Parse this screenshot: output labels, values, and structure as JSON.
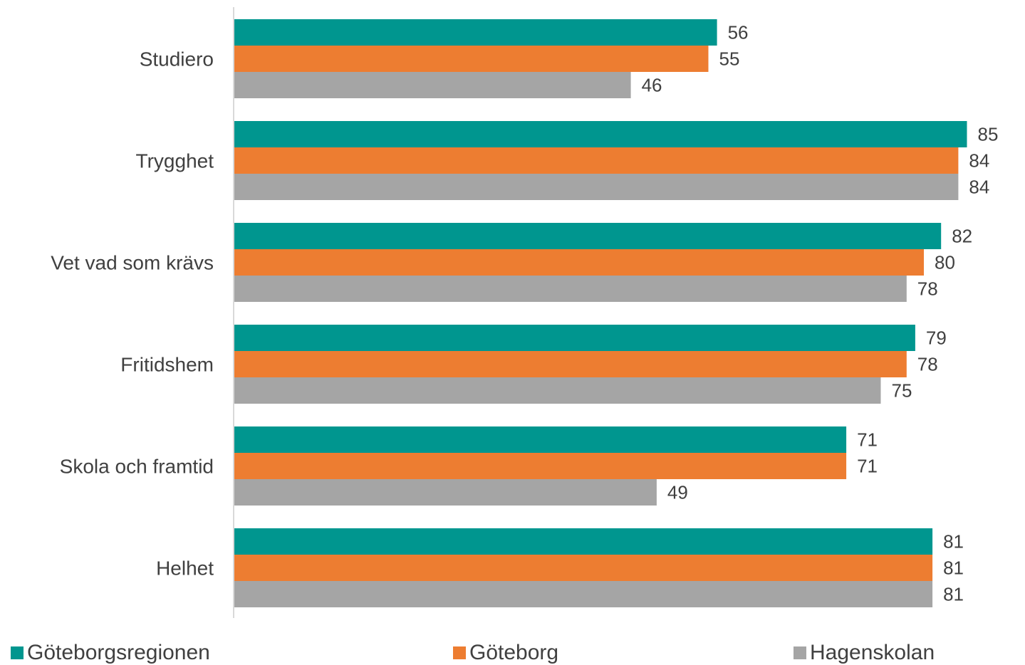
{
  "chart_data": {
    "type": "bar",
    "orientation": "horizontal",
    "categories": [
      "Studiero",
      "Trygghet",
      "Vet vad som krävs",
      "Fritidshem",
      "Skola och framtid",
      "Helhet"
    ],
    "series": [
      {
        "name": "Göteborgsregionen",
        "color": "#00968F",
        "values": [
          56,
          85,
          82,
          79,
          71,
          81
        ]
      },
      {
        "name": "Göteborg",
        "color": "#ED7D31",
        "values": [
          55,
          84,
          80,
          78,
          71,
          81
        ]
      },
      {
        "name": "Hagenskolan",
        "color": "#A5A5A5",
        "values": [
          46,
          84,
          78,
          75,
          49,
          81
        ]
      }
    ],
    "xlim": [
      0,
      100
    ],
    "grid": false,
    "legend_position": "bottom",
    "data_labels": true
  }
}
